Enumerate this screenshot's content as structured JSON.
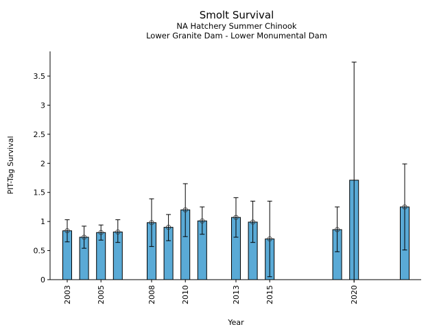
{
  "chart_data": {
    "type": "bar",
    "title": "Smolt Survival",
    "subtitle_1": "NA Hatchery Summer Chinook",
    "subtitle_2": "Lower Granite Dam - Lower Monumental Dam",
    "xlabel": "Year",
    "ylabel": "PIT-Tag Survival",
    "ylim": [
      0,
      3.9
    ],
    "xlim": [
      2002.1,
      2024.0
    ],
    "yticks": [
      0,
      0.5,
      1,
      1.5,
      2,
      2.5,
      3,
      3.5
    ],
    "ytick_labels": [
      "0",
      "0.5",
      "1",
      "1.5",
      "2",
      "2.5",
      "3",
      "3.5"
    ],
    "xticks": [
      2003,
      2005,
      2008,
      2010,
      2013,
      2015,
      2020
    ],
    "xtick_labels": [
      "2003",
      "2005",
      "2008",
      "2010",
      "2013",
      "2015",
      "2020"
    ],
    "grid": false,
    "bar_color": "#5aaad6",
    "points": [
      {
        "year": 2003,
        "value": 0.84,
        "lower": 0.65,
        "upper": 1.03,
        "marker": true
      },
      {
        "year": 2004,
        "value": 0.73,
        "lower": 0.54,
        "upper": 0.92,
        "marker": true
      },
      {
        "year": 2005,
        "value": 0.81,
        "lower": 0.68,
        "upper": 0.94,
        "marker": true
      },
      {
        "year": 2006,
        "value": 0.82,
        "lower": 0.64,
        "upper": 1.03,
        "marker": true
      },
      {
        "year": 2008,
        "value": 0.98,
        "lower": 0.57,
        "upper": 1.39,
        "marker": true
      },
      {
        "year": 2009,
        "value": 0.9,
        "lower": 0.67,
        "upper": 1.12,
        "marker": true
      },
      {
        "year": 2010,
        "value": 1.2,
        "lower": 0.74,
        "upper": 1.65,
        "marker": true
      },
      {
        "year": 2011,
        "value": 1.01,
        "lower": 0.78,
        "upper": 1.25,
        "marker": true
      },
      {
        "year": 2013,
        "value": 1.07,
        "lower": 0.73,
        "upper": 1.41,
        "marker": true
      },
      {
        "year": 2014,
        "value": 0.99,
        "lower": 0.64,
        "upper": 1.35,
        "marker": true
      },
      {
        "year": 2015,
        "value": 0.7,
        "lower": 0.05,
        "upper": 1.35,
        "marker": true
      },
      {
        "year": 2019,
        "value": 0.86,
        "lower": 0.48,
        "upper": 1.25,
        "marker": true
      },
      {
        "year": 2020,
        "value": 1.71,
        "lower": -0.05,
        "upper": 3.74,
        "marker": false
      },
      {
        "year": 2023,
        "value": 1.25,
        "lower": 0.51,
        "upper": 1.99,
        "marker": true
      }
    ]
  }
}
